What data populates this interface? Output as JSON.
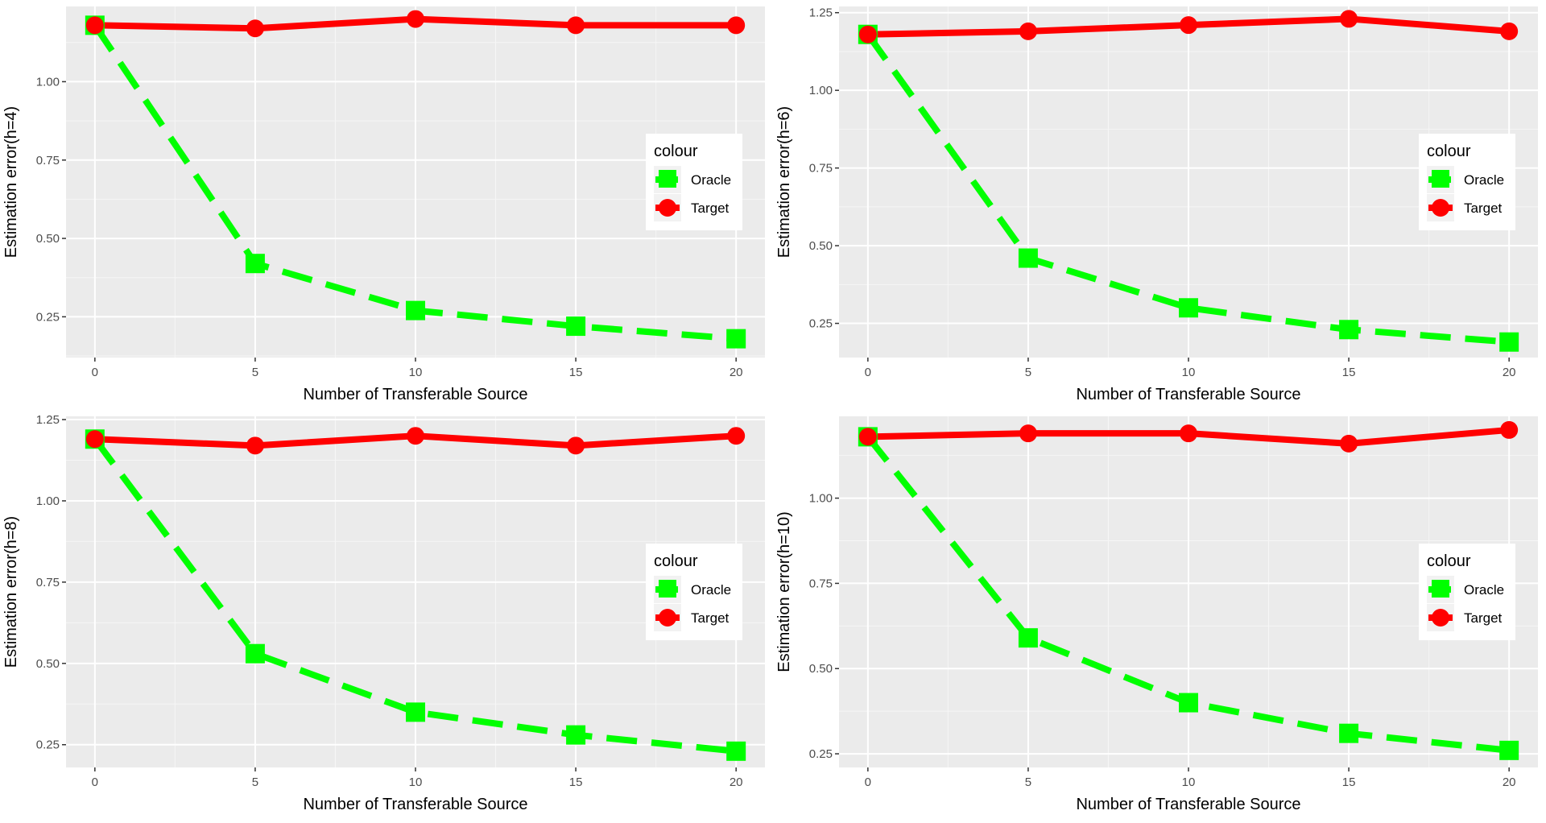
{
  "chart_data": [
    {
      "type": "line",
      "xlabel": "Number of Transferable Source",
      "ylabel": "Estimation error(h=4)",
      "x": [
        0,
        5,
        10,
        15,
        20
      ],
      "xlim": [
        -0.9,
        20.9
      ],
      "ylim": [
        0.12,
        1.24
      ],
      "xticks": [
        "0",
        "5",
        "10",
        "15",
        "20"
      ],
      "yticks": [
        0.25,
        0.5,
        0.75,
        1.0
      ],
      "ytick_labels": [
        "0.25",
        "0.50",
        "0.75",
        "1.00"
      ],
      "grid": true,
      "legend": {
        "title": "colour",
        "position": "right",
        "entries": [
          "Oracle",
          "Target"
        ]
      },
      "series": [
        {
          "name": "Oracle",
          "color": "#00ff00",
          "values": [
            1.18,
            0.42,
            0.27,
            0.22,
            0.18
          ],
          "marker": "square",
          "dash": true
        },
        {
          "name": "Target",
          "color": "#ff0000",
          "values": [
            1.18,
            1.17,
            1.2,
            1.18,
            1.18
          ],
          "marker": "circle",
          "dash": false
        }
      ]
    },
    {
      "type": "line",
      "xlabel": "Number of Transferable Source",
      "ylabel": "Estimation error(h=6)",
      "x": [
        0,
        5,
        10,
        15,
        20
      ],
      "xlim": [
        -0.9,
        20.9
      ],
      "ylim": [
        0.14,
        1.27
      ],
      "xticks": [
        "0",
        "5",
        "10",
        "15",
        "20"
      ],
      "yticks": [
        0.25,
        0.5,
        0.75,
        1.0,
        1.25
      ],
      "ytick_labels": [
        "0.25",
        "0.50",
        "0.75",
        "1.00",
        "1.25"
      ],
      "grid": true,
      "legend": {
        "title": "colour",
        "position": "right",
        "entries": [
          "Oracle",
          "Target"
        ]
      },
      "series": [
        {
          "name": "Oracle",
          "color": "#00ff00",
          "values": [
            1.18,
            0.46,
            0.3,
            0.23,
            0.19
          ],
          "marker": "square",
          "dash": true
        },
        {
          "name": "Target",
          "color": "#ff0000",
          "values": [
            1.18,
            1.19,
            1.21,
            1.23,
            1.19
          ],
          "marker": "circle",
          "dash": false
        }
      ]
    },
    {
      "type": "line",
      "xlabel": "Number of Transferable Source",
      "ylabel": "Estimation error(h=8)",
      "x": [
        0,
        5,
        10,
        15,
        20
      ],
      "xlim": [
        -0.9,
        20.9
      ],
      "ylim": [
        0.18,
        1.26
      ],
      "xticks": [
        "0",
        "5",
        "10",
        "15",
        "20"
      ],
      "yticks": [
        0.25,
        0.5,
        0.75,
        1.0,
        1.25
      ],
      "ytick_labels": [
        "0.25",
        "0.50",
        "0.75",
        "1.00",
        "1.25"
      ],
      "grid": true,
      "legend": {
        "title": "colour",
        "position": "right",
        "entries": [
          "Oracle",
          "Target"
        ]
      },
      "series": [
        {
          "name": "Oracle",
          "color": "#00ff00",
          "values": [
            1.19,
            0.53,
            0.35,
            0.28,
            0.23
          ],
          "marker": "square",
          "dash": true
        },
        {
          "name": "Target",
          "color": "#ff0000",
          "values": [
            1.19,
            1.17,
            1.2,
            1.17,
            1.2
          ],
          "marker": "circle",
          "dash": false
        }
      ]
    },
    {
      "type": "line",
      "xlabel": "Number of Transferable Source",
      "ylabel": "Estimation error(h=10)",
      "x": [
        0,
        5,
        10,
        15,
        20
      ],
      "xlim": [
        -0.9,
        20.9
      ],
      "ylim": [
        0.21,
        1.24
      ],
      "xticks": [
        "0",
        "5",
        "10",
        "15",
        "20"
      ],
      "yticks": [
        0.25,
        0.5,
        0.75,
        1.0
      ],
      "ytick_labels": [
        "0.25",
        "0.50",
        "0.75",
        "1.00"
      ],
      "grid": true,
      "legend": {
        "title": "colour",
        "position": "right",
        "entries": [
          "Oracle",
          "Target"
        ]
      },
      "series": [
        {
          "name": "Oracle",
          "color": "#00ff00",
          "values": [
            1.18,
            0.59,
            0.4,
            0.31,
            0.26
          ],
          "marker": "square",
          "dash": true
        },
        {
          "name": "Target",
          "color": "#ff0000",
          "values": [
            1.18,
            1.19,
            1.19,
            1.16,
            1.2
          ],
          "marker": "circle",
          "dash": false
        }
      ]
    }
  ]
}
